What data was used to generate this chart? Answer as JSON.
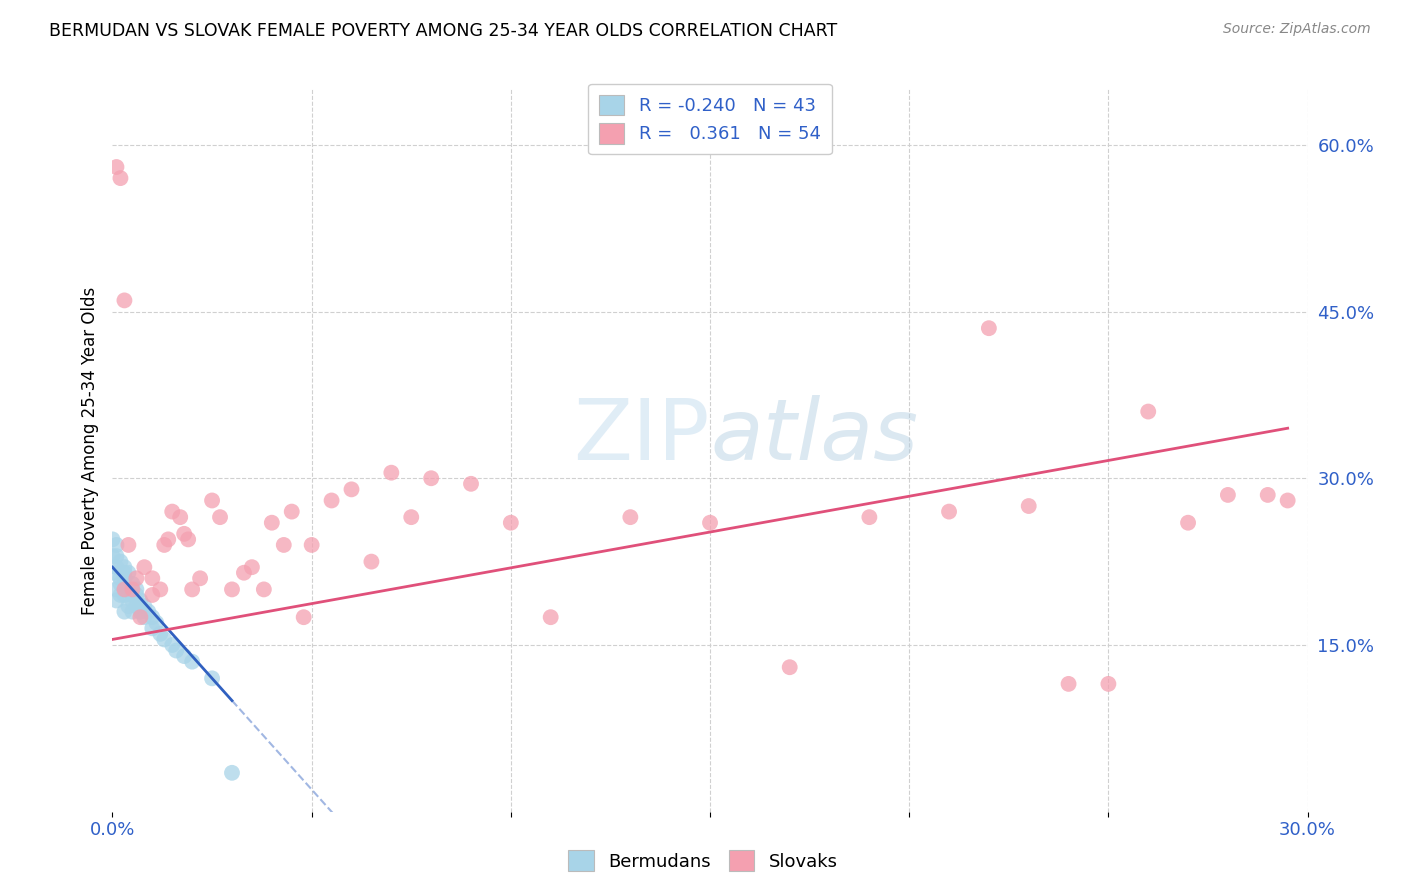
{
  "title": "BERMUDAN VS SLOVAK FEMALE POVERTY AMONG 25-34 YEAR OLDS CORRELATION CHART",
  "source": "Source: ZipAtlas.com",
  "ylabel": "Female Poverty Among 25-34 Year Olds",
  "xlim": [
    0.0,
    0.3
  ],
  "ylim": [
    0.0,
    0.65
  ],
  "legend_r_bermuda": "-0.240",
  "legend_n_bermuda": "43",
  "legend_r_slovak": "0.361",
  "legend_n_slovak": "54",
  "bermuda_color": "#a8d4e8",
  "slovak_color": "#f4a0b0",
  "bermuda_line_color": "#3060c0",
  "slovak_line_color": "#e0507a",
  "background_color": "#ffffff",
  "bermuda_x": [
    0.0,
    0.0,
    0.0,
    0.001,
    0.001,
    0.001,
    0.001,
    0.001,
    0.002,
    0.002,
    0.002,
    0.002,
    0.003,
    0.003,
    0.003,
    0.003,
    0.003,
    0.004,
    0.004,
    0.004,
    0.005,
    0.005,
    0.005,
    0.005,
    0.006,
    0.006,
    0.006,
    0.007,
    0.007,
    0.008,
    0.008,
    0.009,
    0.01,
    0.01,
    0.011,
    0.012,
    0.013,
    0.015,
    0.016,
    0.018,
    0.02,
    0.025,
    0.03
  ],
  "bermuda_y": [
    0.245,
    0.23,
    0.215,
    0.22,
    0.23,
    0.24,
    0.2,
    0.19,
    0.21,
    0.225,
    0.195,
    0.205,
    0.215,
    0.22,
    0.195,
    0.18,
    0.21,
    0.2,
    0.185,
    0.215,
    0.19,
    0.205,
    0.195,
    0.18,
    0.195,
    0.185,
    0.2,
    0.18,
    0.19,
    0.175,
    0.185,
    0.18,
    0.175,
    0.165,
    0.17,
    0.16,
    0.155,
    0.15,
    0.145,
    0.14,
    0.135,
    0.12,
    0.035
  ],
  "slovak_x": [
    0.001,
    0.002,
    0.003,
    0.003,
    0.004,
    0.005,
    0.006,
    0.007,
    0.008,
    0.01,
    0.01,
    0.012,
    0.013,
    0.014,
    0.015,
    0.017,
    0.018,
    0.019,
    0.02,
    0.022,
    0.025,
    0.027,
    0.03,
    0.033,
    0.035,
    0.038,
    0.04,
    0.043,
    0.045,
    0.048,
    0.05,
    0.055,
    0.06,
    0.065,
    0.07,
    0.075,
    0.08,
    0.09,
    0.1,
    0.11,
    0.13,
    0.15,
    0.17,
    0.19,
    0.21,
    0.22,
    0.23,
    0.24,
    0.25,
    0.26,
    0.27,
    0.28,
    0.29,
    0.295
  ],
  "slovak_y": [
    0.58,
    0.57,
    0.46,
    0.2,
    0.24,
    0.2,
    0.21,
    0.175,
    0.22,
    0.21,
    0.195,
    0.2,
    0.24,
    0.245,
    0.27,
    0.265,
    0.25,
    0.245,
    0.2,
    0.21,
    0.28,
    0.265,
    0.2,
    0.215,
    0.22,
    0.2,
    0.26,
    0.24,
    0.27,
    0.175,
    0.24,
    0.28,
    0.29,
    0.225,
    0.305,
    0.265,
    0.3,
    0.295,
    0.26,
    0.175,
    0.265,
    0.26,
    0.13,
    0.265,
    0.27,
    0.435,
    0.275,
    0.115,
    0.115,
    0.36,
    0.26,
    0.285,
    0.285,
    0.28
  ],
  "berm_line_x0": 0.0,
  "berm_line_y0": 0.22,
  "berm_line_x1": 0.03,
  "berm_line_y1": 0.1,
  "berm_line_solid_end": 0.03,
  "berm_line_dash_end": 0.15,
  "slov_line_x0": 0.0,
  "slov_line_y0": 0.155,
  "slov_line_x1": 0.295,
  "slov_line_y1": 0.345
}
